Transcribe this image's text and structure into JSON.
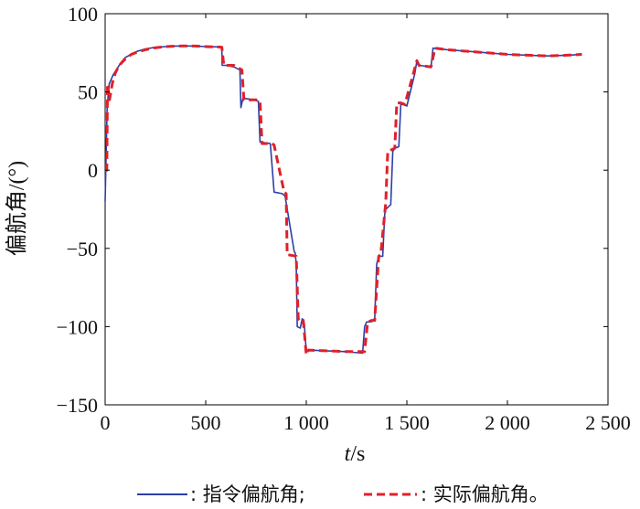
{
  "chart_data": {
    "type": "line",
    "xlabel": {
      "main": "t",
      "sep": "/",
      "unit": "s"
    },
    "ylabel": "偏航角/(°)",
    "xlim": [
      0,
      2500
    ],
    "ylim": [
      -150,
      100
    ],
    "xticks": [
      0,
      500,
      1000,
      1500,
      2000,
      2500
    ],
    "xtick_labels": [
      "0",
      "500",
      "1 000",
      "1 500",
      "2 000",
      "2 500"
    ],
    "yticks": [
      -150,
      -100,
      -50,
      0,
      50,
      100
    ],
    "ytick_labels": [
      "−150",
      "−100",
      "−50",
      "0",
      "50",
      "100"
    ],
    "grid": false,
    "legend_position": "bottom",
    "legend_items": [
      ": 指令偏航角;",
      ": 实际偏航角。"
    ],
    "colors": {
      "command": "#2b3fa8",
      "actual": "#e0202a"
    },
    "series": [
      {
        "name": "指令偏航角",
        "style": "solid",
        "x": [
          0,
          10,
          20,
          30,
          40,
          60,
          80,
          100,
          130,
          160,
          200,
          250,
          300,
          350,
          400,
          450,
          500,
          560,
          580,
          582,
          600,
          640,
          670,
          675,
          685,
          740,
          762,
          770,
          820,
          822,
          840,
          880,
          890,
          895,
          940,
          945,
          950,
          955,
          970,
          980,
          985,
          990,
          1000,
          1010,
          1100,
          1200,
          1280,
          1290,
          1300,
          1320,
          1340,
          1350,
          1360,
          1380,
          1390,
          1395,
          1420,
          1430,
          1440,
          1460,
          1470,
          1480,
          1500,
          1540,
          1550,
          1560,
          1620,
          1630,
          1700,
          1800,
          1900,
          2000,
          2100,
          2200,
          2300,
          2370
        ],
        "y": [
          -20,
          40,
          55,
          58,
          61,
          65,
          69,
          72,
          74,
          76,
          77.5,
          78.5,
          79,
          79.3,
          79.4,
          79.3,
          79,
          78.8,
          78.5,
          67,
          67,
          66,
          64,
          40,
          46,
          45,
          44,
          18,
          17,
          16,
          -14,
          -15,
          -16,
          -17,
          -52,
          -53,
          -60,
          -100,
          -101,
          -95,
          -96,
          -98,
          -116,
          -115,
          -115.5,
          -116,
          -117,
          -100,
          -97,
          -97,
          -96,
          -60,
          -55,
          -55,
          -28,
          -25,
          -22,
          12,
          14,
          15,
          42,
          42,
          41,
          62,
          70,
          67,
          66,
          78,
          77,
          76,
          75,
          74,
          73.5,
          73,
          73.5,
          74
        ]
      },
      {
        "name": "实际偏航角",
        "style": "dashed",
        "x": [
          0,
          8,
          12,
          22,
          35,
          50,
          70,
          100,
          130,
          160,
          200,
          250,
          300,
          350,
          400,
          450,
          500,
          580,
          590,
          640,
          680,
          690,
          750,
          770,
          780,
          830,
          840,
          890,
          900,
          905,
          950,
          960,
          975,
          985,
          1000,
          1010,
          1100,
          1200,
          1290,
          1305,
          1325,
          1340,
          1360,
          1370,
          1395,
          1405,
          1440,
          1450,
          1470,
          1490,
          1550,
          1560,
          1620,
          1640,
          1700,
          1800,
          1900,
          2000,
          2100,
          2200,
          2300,
          2370
        ],
        "y": [
          0,
          0,
          55,
          45,
          55,
          62,
          67,
          71,
          74,
          75.5,
          77,
          78.3,
          79,
          79.3,
          79.4,
          79.3,
          79,
          78.6,
          67,
          67,
          64,
          45,
          45,
          44,
          17,
          17,
          16,
          -14,
          -15,
          -54,
          -55,
          -95,
          -97,
          -96,
          -118,
          -115,
          -115.5,
          -116,
          -116,
          -97,
          -96,
          -96,
          -55,
          -54,
          -21,
          12,
          14,
          43,
          43,
          42,
          70,
          67,
          66,
          78,
          77,
          76,
          75,
          74,
          73.5,
          73,
          73.5,
          74
        ]
      }
    ]
  }
}
